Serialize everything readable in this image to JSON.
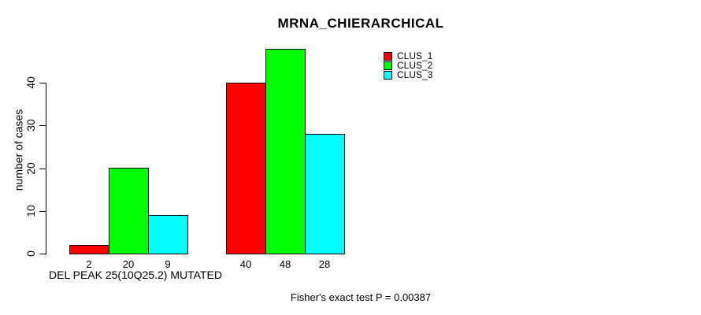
{
  "chart_data": {
    "type": "bar",
    "title": "MRNA_CHIERARCHICAL",
    "ylabel": "number of cases",
    "xlabel": "DEL PEAK 25(10Q25.2) MUTATED",
    "footnote": "Fisher's exact test P = 0.00387",
    "categories": [
      "",
      ""
    ],
    "series": [
      {
        "name": "CLUS_1",
        "color": "#ff0000",
        "values": [
          2,
          40
        ]
      },
      {
        "name": "CLUS_2",
        "color": "#00ff00",
        "values": [
          20,
          48
        ]
      },
      {
        "name": "CLUS_3",
        "color": "#00ffff",
        "values": [
          9,
          28
        ]
      }
    ],
    "bar_value_labels": [
      [
        2,
        20,
        9
      ],
      [
        40,
        48,
        28
      ]
    ],
    "y_ticks": [
      0,
      10,
      20,
      30,
      40
    ],
    "ylim": [
      0,
      40
    ],
    "grid": false,
    "legend_position": "top-right",
    "bar_border_color": "#000000",
    "axis_color": "#000000",
    "background_color": "#ffffff"
  }
}
